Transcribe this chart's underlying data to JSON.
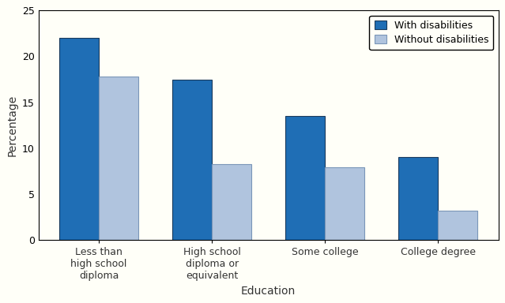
{
  "categories": [
    "Less than\nhigh school\ndiploma",
    "High school\ndiploma or\nequivalent",
    "Some college",
    "College degree"
  ],
  "with_disabilities": [
    22.0,
    17.5,
    13.5,
    9.0
  ],
  "without_disabilities": [
    17.8,
    8.3,
    7.9,
    3.2
  ],
  "color_with": "#1f6eb5",
  "color_without": "#b0c4de",
  "edge_color_with": "#1a3a5c",
  "edge_color_without": "#7a96b8",
  "ylabel": "Percentage",
  "xlabel": "Education",
  "legend_with": "With disabilities",
  "legend_without": "Without disabilities",
  "ylim": [
    0,
    25
  ],
  "yticks": [
    0,
    5,
    10,
    15,
    20,
    25
  ],
  "bar_width": 0.35,
  "figure_width": 6.39,
  "figure_height": 3.84,
  "dpi": 100,
  "bg_color": "#fffff8"
}
